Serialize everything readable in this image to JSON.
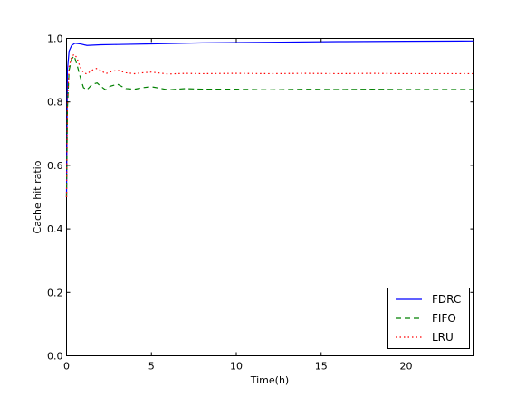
{
  "chart_data": {
    "type": "line",
    "title": "",
    "xlabel": "Time(h)",
    "ylabel": "Cache hit ratio",
    "xlim": [
      0,
      24
    ],
    "ylim": [
      0.0,
      1.0
    ],
    "x_ticks": [
      0,
      5,
      10,
      15,
      20
    ],
    "x_tick_labels": [
      "0",
      "5",
      "10",
      "15",
      "20"
    ],
    "y_ticks": [
      0.0,
      0.2,
      0.4,
      0.6,
      0.8,
      1.0
    ],
    "y_tick_labels": [
      "0.0",
      "0.2",
      "0.4",
      "0.6",
      "0.8",
      "1.0"
    ],
    "grid": false,
    "legend_position": "bottom-right",
    "series": [
      {
        "name": "FDRC",
        "color": "#0000ff",
        "style": "solid",
        "x": [
          0,
          0.05,
          0.15,
          0.3,
          0.5,
          0.8,
          1.2,
          2,
          3,
          5,
          8,
          12,
          16,
          20,
          24
        ],
        "y": [
          0.5,
          0.9,
          0.96,
          0.978,
          0.985,
          0.983,
          0.978,
          0.98,
          0.981,
          0.983,
          0.986,
          0.988,
          0.99,
          0.991,
          0.992
        ]
      },
      {
        "name": "FIFO",
        "color": "#008000",
        "style": "dashed",
        "x": [
          0,
          0.05,
          0.15,
          0.3,
          0.45,
          0.6,
          0.8,
          1.0,
          1.2,
          1.5,
          1.8,
          2.0,
          2.3,
          2.6,
          3.0,
          3.5,
          4.0,
          4.5,
          5.0,
          6.0,
          7.0,
          8.0,
          10,
          12,
          14,
          16,
          18,
          20,
          22,
          24
        ],
        "y": [
          0.5,
          0.78,
          0.9,
          0.935,
          0.945,
          0.92,
          0.88,
          0.845,
          0.838,
          0.855,
          0.86,
          0.85,
          0.838,
          0.85,
          0.856,
          0.842,
          0.84,
          0.845,
          0.848,
          0.838,
          0.842,
          0.84,
          0.84,
          0.838,
          0.84,
          0.839,
          0.84,
          0.839,
          0.839,
          0.839
        ]
      },
      {
        "name": "LRU",
        "color": "#ff0000",
        "style": "dotted",
        "x": [
          0,
          0.05,
          0.15,
          0.3,
          0.45,
          0.6,
          0.8,
          1.0,
          1.2,
          1.5,
          1.8,
          2.0,
          2.3,
          2.6,
          3.0,
          3.5,
          4.0,
          4.5,
          5.0,
          6.0,
          7.0,
          8.0,
          10,
          12,
          14,
          16,
          18,
          20,
          22,
          24
        ],
        "y": [
          0.5,
          0.8,
          0.91,
          0.942,
          0.95,
          0.94,
          0.91,
          0.892,
          0.888,
          0.9,
          0.906,
          0.9,
          0.889,
          0.895,
          0.9,
          0.892,
          0.889,
          0.892,
          0.894,
          0.888,
          0.89,
          0.889,
          0.89,
          0.889,
          0.89,
          0.889,
          0.89,
          0.889,
          0.889,
          0.889
        ]
      }
    ]
  }
}
